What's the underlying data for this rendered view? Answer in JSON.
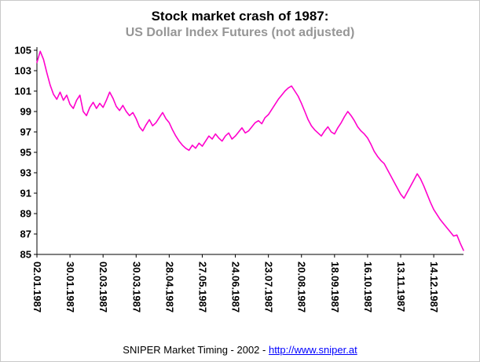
{
  "footer": {
    "credit": "SNIPER Market Timing - 2002 - ",
    "link": "http://www.sniper.at"
  },
  "chart_data": {
    "type": "line",
    "title": "Stock market crash of 1987:",
    "subtitle": "US Dollar Index Futures (not adjusted)",
    "grid": false,
    "legend": "none",
    "ylim": [
      85,
      105
    ],
    "y_ticks": [
      85,
      87,
      89,
      91,
      93,
      95,
      97,
      99,
      101,
      103,
      105
    ],
    "xlim_days": [
      0,
      258
    ],
    "x_tick_days": [
      0,
      20,
      40,
      60,
      80,
      100,
      120,
      140,
      160,
      180,
      200,
      220,
      240
    ],
    "x_tick_labels": [
      "02.01.1987",
      "30.01.1987",
      "02.03.1987",
      "30.03.1987",
      "28.04.1987",
      "27.05.1987",
      "24.06.1987",
      "23.07.1987",
      "20.08.1987",
      "18.09.1987",
      "16.10.1987",
      "13.11.1987",
      "14.12.1987"
    ],
    "line_color": "#ff00cc",
    "series": [
      {
        "name": "US Dollar Index Futures",
        "x_start_day": 0,
        "x_step_days": 2,
        "values": [
          103.8,
          104.9,
          104.1,
          102.8,
          101.6,
          100.7,
          100.2,
          100.9,
          100.1,
          100.6,
          99.7,
          99.3,
          100.1,
          100.6,
          99.0,
          98.6,
          99.4,
          99.9,
          99.3,
          99.8,
          99.4,
          100.1,
          100.9,
          100.3,
          99.5,
          99.1,
          99.6,
          99.0,
          98.6,
          98.9,
          98.3,
          97.5,
          97.1,
          97.7,
          98.2,
          97.6,
          97.9,
          98.4,
          98.9,
          98.3,
          97.9,
          97.2,
          96.6,
          96.1,
          95.7,
          95.4,
          95.2,
          95.7,
          95.4,
          95.9,
          95.6,
          96.1,
          96.6,
          96.3,
          96.8,
          96.4,
          96.1,
          96.6,
          96.9,
          96.3,
          96.6,
          97.0,
          97.4,
          96.9,
          97.1,
          97.5,
          97.9,
          98.1,
          97.8,
          98.4,
          98.7,
          99.2,
          99.7,
          100.2,
          100.6,
          101.0,
          101.3,
          101.5,
          101.0,
          100.5,
          99.8,
          99.0,
          98.2,
          97.6,
          97.2,
          96.9,
          96.6,
          97.1,
          97.5,
          97.0,
          96.8,
          97.4,
          97.9,
          98.5,
          99.0,
          98.6,
          98.1,
          97.5,
          97.1,
          96.8,
          96.4,
          95.8,
          95.1,
          94.6,
          94.2,
          93.9,
          93.3,
          92.7,
          92.1,
          91.5,
          90.9,
          90.5,
          91.1,
          91.7,
          92.3,
          92.9,
          92.4,
          91.7,
          90.9,
          90.1,
          89.4,
          88.9,
          88.4,
          88.0,
          87.6,
          87.2,
          86.8,
          86.9,
          86.1,
          85.4
        ]
      }
    ]
  }
}
